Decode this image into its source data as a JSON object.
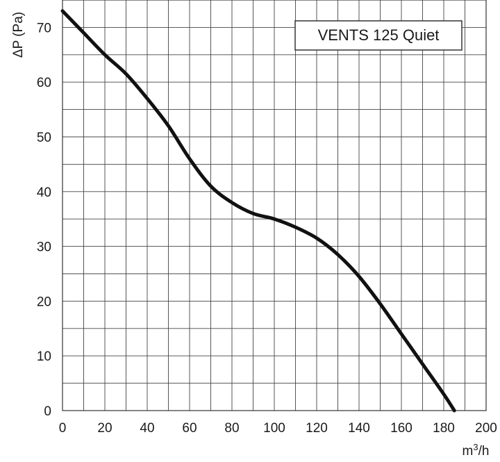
{
  "chart_data": {
    "type": "line",
    "title": "",
    "xlabel": "m³/h",
    "ylabel": "ΔP (Pa)",
    "xlim": [
      0,
      200
    ],
    "ylim": [
      0,
      75
    ],
    "x_ticks": [
      "0",
      "20",
      "40",
      "60",
      "80",
      "100",
      "120",
      "140",
      "160",
      "180",
      "200"
    ],
    "y_ticks": [
      "0",
      "10",
      "20",
      "30",
      "40",
      "50",
      "60",
      "70"
    ],
    "grid": true,
    "legend_placement": "top-right",
    "series": [
      {
        "name": "VENTS 125 Quiet",
        "color": "#111111",
        "x": [
          0,
          10,
          20,
          30,
          40,
          50,
          60,
          70,
          80,
          90,
          100,
          110,
          120,
          130,
          140,
          150,
          160,
          170,
          180,
          185
        ],
        "y": [
          73,
          69,
          65,
          61.5,
          57,
          52,
          46,
          41,
          38,
          36,
          35,
          33.5,
          31.5,
          28.5,
          24.5,
          19.5,
          14,
          8.5,
          3,
          0
        ]
      }
    ]
  }
}
